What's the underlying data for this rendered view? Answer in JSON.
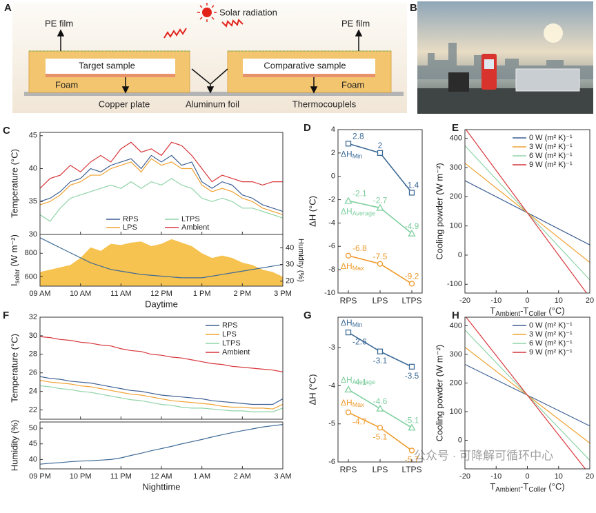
{
  "diagram": {
    "panel": "A",
    "solar": "Solar radiation",
    "pe_left": "PE film",
    "pe_right": "PE film",
    "target": "Target sample",
    "comparative": "Comparative sample",
    "foam_left": "Foam",
    "foam_right": "Foam",
    "copper": "Copper plate",
    "aluminum": "Aluminum foil",
    "thermo": "Thermocouplels"
  },
  "photo": {
    "panel": "B"
  },
  "watermark": "公众号 · 可降解可循环中心",
  "chart_data": [
    {
      "type": "line",
      "panel": "C",
      "ylabel": "Temperature (°C)",
      "x": [
        9,
        9.25,
        9.5,
        9.75,
        10,
        10.25,
        10.5,
        10.75,
        11,
        11.25,
        11.5,
        11.75,
        12,
        12.25,
        12.5,
        12.75,
        13,
        13.25,
        13.5,
        13.75,
        14,
        14.25,
        14.5,
        14.75,
        15
      ],
      "xlim": [
        9,
        15
      ],
      "xticks": [
        9,
        10,
        11,
        12,
        13,
        14,
        15
      ],
      "ylim": [
        30,
        45.5
      ],
      "yticks": [
        30,
        35,
        40,
        45
      ],
      "legend": "lower center",
      "legend_columns": 2,
      "series": [
        {
          "name": "RPS",
          "color": "#3d5f94",
          "values": [
            35,
            35.5,
            36.5,
            38,
            38.5,
            40,
            39.5,
            40.5,
            41,
            41.5,
            40,
            42,
            41,
            42,
            40.5,
            41,
            38,
            37,
            38,
            37.5,
            36,
            35.5,
            34.5,
            34,
            33.5
          ]
        },
        {
          "name": "LPS",
          "color": "#f0a232",
          "values": [
            34.5,
            35,
            36,
            37.5,
            38,
            39,
            39,
            40,
            40.5,
            41,
            39.5,
            41.5,
            40.5,
            41,
            40,
            40,
            37.5,
            36.5,
            37,
            36.5,
            35.5,
            35,
            34,
            33.5,
            33
          ]
        },
        {
          "name": "LTPS",
          "color": "#8fd3a8",
          "values": [
            33,
            32,
            34,
            35.5,
            36,
            36.5,
            37,
            37.5,
            37,
            38,
            37,
            38,
            37.5,
            38.5,
            37.5,
            37,
            35.5,
            35,
            35.5,
            35,
            34,
            34,
            33.5,
            33,
            32.5
          ]
        },
        {
          "name": "Ambient",
          "color": "#d8353a",
          "values": [
            37,
            38.5,
            39,
            40.5,
            39.5,
            41,
            42,
            41,
            43,
            44,
            42.5,
            43,
            42,
            44,
            43.5,
            42,
            40,
            38,
            39,
            38.5,
            38,
            38,
            37.5,
            38,
            38
          ]
        }
      ]
    },
    {
      "type": "area",
      "xlabel": "Daytime",
      "ylabel": [
        {
          "text": "I"
        },
        {
          "text": "solar",
          "sub": true
        },
        {
          "text": " (W m⁻²)"
        }
      ],
      "y2label": "Humidity (%)",
      "x": [
        9,
        9.25,
        9.5,
        9.75,
        10,
        10.25,
        10.5,
        10.75,
        11,
        11.25,
        11.5,
        11.75,
        12,
        12.25,
        12.5,
        12.75,
        13,
        13.25,
        13.5,
        13.75,
        14,
        14.25,
        14.5,
        14.75,
        15
      ],
      "xlim": [
        9,
        15
      ],
      "xticks": [
        {
          "value": 9,
          "label": "09 AM"
        },
        {
          "value": 10,
          "label": "10 AM"
        },
        {
          "value": 11,
          "label": "11 AM"
        },
        {
          "value": 12,
          "label": "12 PM"
        },
        {
          "value": 13,
          "label": "1 PM"
        },
        {
          "value": 14,
          "label": "2 PM"
        },
        {
          "value": 15,
          "label": "3 PM"
        }
      ],
      "ylim": [
        520,
        960
      ],
      "yticks": [
        600,
        800
      ],
      "y2lim": [
        17,
        48
      ],
      "y2ticks": [
        20,
        30,
        40
      ],
      "series": [
        {
          "style": "area",
          "color": "#f5b731",
          "values": [
            640,
            660,
            680,
            700,
            760,
            850,
            820,
            880,
            870,
            890,
            900,
            860,
            880,
            920,
            890,
            860,
            800,
            760,
            780,
            760,
            720,
            700,
            660,
            640,
            600
          ]
        },
        {
          "style": "line",
          "axis": "y2",
          "color": "#3d6a96",
          "values": [
            46,
            43,
            40,
            37,
            34,
            31,
            29,
            27,
            26,
            25,
            24,
            23.5,
            23,
            22.5,
            22,
            22,
            22,
            23,
            24,
            25,
            26,
            27,
            28,
            29,
            30
          ]
        }
      ]
    },
    {
      "type": "line",
      "panel": "D",
      "ylabel": "ΔH (°C)",
      "categories": [
        "RPS",
        "LPS",
        "LTPS"
      ],
      "ylim": [
        -10,
        4
      ],
      "yticks": [
        -10,
        -8,
        -6,
        -4,
        -2,
        0,
        2,
        4
      ],
      "legend": "inline",
      "data_labels": true,
      "series": [
        {
          "name": [
            {
              "text": "ΔH"
            },
            {
              "text": "Min",
              "sub": true
            }
          ],
          "color": "#3d6a96",
          "marker": "square",
          "values": [
            2.8,
            2.0,
            -1.4
          ]
        },
        {
          "name": [
            {
              "text": "ΔH"
            },
            {
              "text": "Average",
              "sub": true
            }
          ],
          "color": "#7fcf9f",
          "marker": "triangle",
          "values": [
            -2.1,
            -2.7,
            -4.9
          ]
        },
        {
          "name": [
            {
              "text": "ΔH"
            },
            {
              "text": "Max",
              "sub": true
            }
          ],
          "color": "#ef9a2c",
          "marker": "circle",
          "values": [
            -6.8,
            -7.5,
            -9.2
          ]
        }
      ]
    },
    {
      "type": "line",
      "panel": "E",
      "ylabel": "Cooling powder (W m⁻²)",
      "xlabel": [
        {
          "text": "T"
        },
        {
          "text": "Ambient",
          "sub": true
        },
        {
          "text": "-T"
        },
        {
          "text": "Coller",
          "sub": true
        },
        {
          "text": " (°C)"
        }
      ],
      "x": [
        -20,
        20
      ],
      "xlim": [
        -20,
        20
      ],
      "xticks": [
        -20,
        -10,
        0,
        10,
        20
      ],
      "ylim": [
        -130,
        430
      ],
      "yticks": [
        -100,
        0,
        100,
        200,
        300,
        400
      ],
      "legend": "upper right",
      "series": [
        {
          "name": "0 W (m² K)⁻¹",
          "color": "#3d5f94",
          "values": [
            255,
            35
          ]
        },
        {
          "name": "3 W (m² K)⁻¹",
          "color": "#f0a232",
          "values": [
            315,
            -25
          ]
        },
        {
          "name": "6 W (m² K)⁻¹",
          "color": "#8fd3a8",
          "values": [
            375,
            -85
          ]
        },
        {
          "name": "9 W (m² K)⁻¹",
          "color": "#d8353a",
          "values": [
            435,
            -145
          ]
        }
      ]
    },
    {
      "type": "line",
      "panel": "F",
      "ylabel": "Temperature (°C)",
      "x": [
        21,
        21.25,
        21.5,
        21.75,
        22,
        22.25,
        22.5,
        22.75,
        23,
        23.25,
        23.5,
        23.75,
        24,
        24.25,
        24.5,
        24.75,
        25,
        25.25,
        25.5,
        25.75,
        26,
        26.25,
        26.5,
        26.75,
        27
      ],
      "xlim": [
        21,
        27
      ],
      "xticks": [
        21,
        22,
        23,
        24,
        25,
        26,
        27
      ],
      "ylim": [
        21,
        32
      ],
      "yticks": [
        22,
        24,
        26,
        28,
        30,
        32
      ],
      "legend": "upper right",
      "series": [
        {
          "name": "RPS",
          "color": "#3d5f94",
          "values": [
            25.6,
            25.4,
            25.3,
            25.1,
            25.0,
            24.9,
            24.7,
            24.5,
            24.3,
            24.1,
            24.0,
            23.8,
            23.6,
            23.5,
            23.4,
            23.3,
            23.2,
            23.0,
            22.9,
            22.8,
            22.7,
            22.6,
            22.6,
            22.6,
            23.2
          ]
        },
        {
          "name": "LPS",
          "color": "#f0a232",
          "values": [
            25.2,
            25.0,
            24.9,
            24.8,
            24.6,
            24.5,
            24.3,
            24.1,
            23.9,
            23.7,
            23.6,
            23.4,
            23.2,
            23.0,
            22.9,
            22.8,
            22.7,
            22.6,
            22.4,
            22.3,
            22.3,
            22.2,
            22.2,
            22.1,
            22.6
          ]
        },
        {
          "name": "LTPS",
          "color": "#8fd3a8",
          "values": [
            24.6,
            24.5,
            24.3,
            24.2,
            24.0,
            23.9,
            23.7,
            23.5,
            23.3,
            23.1,
            23.0,
            22.8,
            22.6,
            22.5,
            22.3,
            22.2,
            22.2,
            22.1,
            22.0,
            21.9,
            21.9,
            21.8,
            21.8,
            21.8,
            22.2
          ]
        },
        {
          "name": "Ambient",
          "color": "#d8353a",
          "values": [
            29.9,
            29.8,
            29.6,
            29.5,
            29.3,
            29.2,
            29.0,
            28.9,
            28.6,
            28.4,
            28.3,
            28.0,
            27.9,
            27.7,
            27.6,
            27.4,
            27.2,
            27.0,
            26.9,
            26.7,
            26.6,
            26.5,
            26.4,
            26.3,
            26.1
          ]
        }
      ]
    },
    {
      "type": "line",
      "xlabel": "Nighttime",
      "ylabel": "Humidity (%)",
      "x": [
        21,
        21.25,
        21.5,
        21.75,
        22,
        22.25,
        22.5,
        22.75,
        23,
        23.25,
        23.5,
        23.75,
        24,
        24.25,
        24.5,
        24.75,
        25,
        25.25,
        25.5,
        25.75,
        26,
        26.25,
        26.5,
        26.75,
        27
      ],
      "xlim": [
        21,
        27
      ],
      "xticks": [
        {
          "value": 21,
          "label": "09 PM"
        },
        {
          "value": 22,
          "label": "10 PM"
        },
        {
          "value": 23,
          "label": "11 PM"
        },
        {
          "value": 24,
          "label": "12 AM"
        },
        {
          "value": 25,
          "label": "1 AM"
        },
        {
          "value": 26,
          "label": "2 AM"
        },
        {
          "value": 27,
          "label": "3 AM"
        }
      ],
      "ylim": [
        37,
        52
      ],
      "yticks": [
        40,
        45,
        50
      ],
      "series": [
        {
          "color": "#3d6a96",
          "values": [
            38.5,
            38.8,
            39.0,
            39.3,
            39.5,
            39.6,
            39.8,
            40.0,
            40.5,
            41.3,
            42.0,
            42.8,
            43.5,
            44.2,
            45.0,
            45.7,
            46.4,
            47.2,
            47.9,
            48.6,
            49.2,
            49.8,
            50.4,
            50.8,
            51.2
          ]
        }
      ]
    },
    {
      "type": "line",
      "panel": "G",
      "ylabel": "ΔH (°C)",
      "categories": [
        "RPS",
        "LPS",
        "LTPS"
      ],
      "ylim": [
        -6,
        -2.2
      ],
      "yticks": [
        -6,
        -5,
        -4,
        -3
      ],
      "legend": "inline",
      "data_labels": true,
      "series": [
        {
          "name": [
            {
              "text": "ΔH"
            },
            {
              "text": "Min",
              "sub": true
            }
          ],
          "color": "#3d6a96",
          "marker": "square",
          "values": [
            -2.6,
            -3.1,
            -3.5
          ]
        },
        {
          "name": [
            {
              "text": "ΔH"
            },
            {
              "text": "Average",
              "sub": true
            }
          ],
          "color": "#7fcf9f",
          "marker": "triangle",
          "values": [
            -4.1,
            -4.6,
            -5.1
          ]
        },
        {
          "name": [
            {
              "text": "ΔH"
            },
            {
              "text": "Max",
              "sub": true
            }
          ],
          "color": "#ef9a2c",
          "marker": "circle",
          "values": [
            -4.7,
            -5.1,
            -5.7
          ]
        }
      ]
    },
    {
      "type": "line",
      "panel": "H",
      "ylabel": "Cooling powder (W m⁻²)",
      "xlabel": [
        {
          "text": "T"
        },
        {
          "text": "Ambient",
          "sub": true
        },
        {
          "text": "-T"
        },
        {
          "text": "Coller",
          "sub": true
        },
        {
          "text": " (°C)"
        }
      ],
      "x": [
        -20,
        20
      ],
      "xlim": [
        -20,
        20
      ],
      "xticks": [
        -20,
        -10,
        0,
        10,
        20
      ],
      "ylim": [
        -100,
        430
      ],
      "yticks": [
        0,
        100,
        200,
        300,
        400
      ],
      "legend": "upper right",
      "series": [
        {
          "name": "0 W (m² K)⁻¹",
          "color": "#3d5f94",
          "values": [
            265,
            50
          ]
        },
        {
          "name": "3 W (m² K)⁻¹",
          "color": "#f0a232",
          "values": [
            325,
            -10
          ]
        },
        {
          "name": "6 W (m² K)⁻¹",
          "color": "#8fd3a8",
          "values": [
            385,
            -70
          ]
        },
        {
          "name": "9 W (m² K)⁻¹",
          "color": "#d8353a",
          "values": [
            435,
            -120
          ]
        }
      ]
    }
  ]
}
